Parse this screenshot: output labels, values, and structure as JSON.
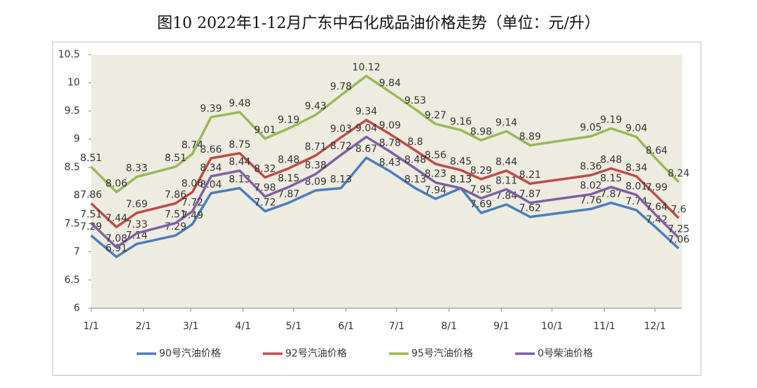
{
  "chart_data": {
    "type": "line",
    "title": "图10 2022年1-12月广东中石化成品油价格走势（单位：元/升）",
    "x": [
      0,
      15,
      27,
      50,
      60,
      71,
      88,
      103,
      117,
      133,
      148,
      163,
      177,
      192,
      204,
      219,
      231,
      246,
      260,
      296,
      308,
      323,
      335,
      348
    ],
    "xlim": [
      0,
      350
    ],
    "xticks": [
      {
        "value": 0,
        "label": "1/1"
      },
      {
        "value": 31,
        "label": "2/1"
      },
      {
        "value": 59,
        "label": "3/1"
      },
      {
        "value": 90,
        "label": "4/1"
      },
      {
        "value": 120,
        "label": "5/1"
      },
      {
        "value": 151,
        "label": "6/1"
      },
      {
        "value": 181,
        "label": "7/1"
      },
      {
        "value": 212,
        "label": "8/1"
      },
      {
        "value": 243,
        "label": "9/1"
      },
      {
        "value": 273,
        "label": "10/1"
      },
      {
        "value": 304,
        "label": "11/1"
      },
      {
        "value": 334,
        "label": "12/1"
      }
    ],
    "ylim": [
      6,
      10.5
    ],
    "yticks": [
      6,
      6.5,
      7,
      7.5,
      8,
      8.5,
      9,
      9.5,
      10,
      10.5
    ],
    "legend": "bottom",
    "series": [
      {
        "name": "90号汽油价格",
        "color": "#4a7ebb",
        "values": [
          7.29,
          6.91,
          7.14,
          7.29,
          7.49,
          8.04,
          8.13,
          7.72,
          7.87,
          8.09,
          8.13,
          8.67,
          8.43,
          8.13,
          7.94,
          8.13,
          7.69,
          7.84,
          7.62,
          7.76,
          7.87,
          7.74,
          7.42,
          7.06
        ]
      },
      {
        "name": "92号汽油价格",
        "color": "#be4b48",
        "values": [
          7.86,
          7.44,
          7.69,
          7.86,
          8.06,
          8.66,
          8.75,
          8.32,
          8.48,
          8.71,
          9.03,
          9.34,
          9.09,
          8.8,
          8.56,
          8.45,
          8.29,
          8.44,
          8.21,
          8.36,
          8.48,
          8.34,
          7.99,
          7.6
        ]
      },
      {
        "name": "95号汽油价格",
        "color": "#98b954",
        "values": [
          8.51,
          8.06,
          8.33,
          8.51,
          8.74,
          9.39,
          9.48,
          9.01,
          9.19,
          9.43,
          9.78,
          10.12,
          9.84,
          9.53,
          9.27,
          9.16,
          8.98,
          9.14,
          8.89,
          9.05,
          9.19,
          9.04,
          8.64,
          8.24
        ]
      },
      {
        "name": "0号柴油价格",
        "color": "#7d60a0",
        "values": [
          7.51,
          7.08,
          7.33,
          7.51,
          7.72,
          8.34,
          8.44,
          7.98,
          8.15,
          8.38,
          8.72,
          9.04,
          8.78,
          8.48,
          8.23,
          8.13,
          7.95,
          8.11,
          7.87,
          8.02,
          8.15,
          8.01,
          7.64,
          7.25
        ]
      }
    ]
  }
}
